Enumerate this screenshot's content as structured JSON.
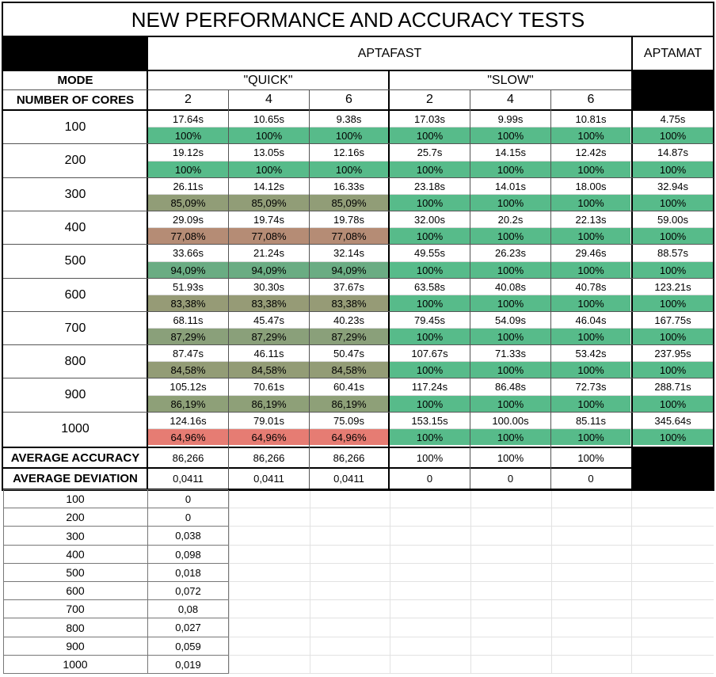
{
  "title": "NEW PERFORMANCE AND ACCURACY TESTS",
  "groups": {
    "aptafast": "APTAFAST",
    "aptamat": "APTAMAT"
  },
  "mode_label": "MODE",
  "cores_label": "NUMBER OF CORES",
  "modes": {
    "quick": "\"QUICK\"",
    "slow": "\"SLOW\""
  },
  "cores": [
    "2",
    "4",
    "6",
    "2",
    "4",
    "6"
  ],
  "rows": [
    {
      "n": "100",
      "times": [
        "17.64s",
        "10.65s",
        "9.38s",
        "17.03s",
        "9.99s",
        "10.81s",
        "4.75s"
      ],
      "acc": [
        "100%",
        "100%",
        "100%",
        "100%",
        "100%",
        "100%",
        "100%"
      ]
    },
    {
      "n": "200",
      "times": [
        "19.12s",
        "13.05s",
        "12.16s",
        "25.7s",
        "14.15s",
        "12.42s",
        "14.87s"
      ],
      "acc": [
        "100%",
        "100%",
        "100%",
        "100%",
        "100%",
        "100%",
        "100%"
      ]
    },
    {
      "n": "300",
      "times": [
        "26.11s",
        "14.12s",
        "16.33s",
        "23.18s",
        "14.01s",
        "18.00s",
        "32.94s"
      ],
      "acc": [
        "85,09%",
        "85,09%",
        "85,09%",
        "100%",
        "100%",
        "100%",
        "100%"
      ]
    },
    {
      "n": "400",
      "times": [
        "29.09s",
        "19.74s",
        "19.78s",
        "32.00s",
        "20.2s",
        "22.13s",
        "59.00s"
      ],
      "acc": [
        "77,08%",
        "77,08%",
        "77,08%",
        "100%",
        "100%",
        "100%",
        "100%"
      ]
    },
    {
      "n": "500",
      "times": [
        "33.66s",
        "21.24s",
        "32.14s",
        "49.55s",
        "26.23s",
        "29.46s",
        "88.57s"
      ],
      "acc": [
        "94,09%",
        "94,09%",
        "94,09%",
        "100%",
        "100%",
        "100%",
        "100%"
      ]
    },
    {
      "n": "600",
      "times": [
        "51.93s",
        "30.30s",
        "37.67s",
        "63.58s",
        "40.08s",
        "40.78s",
        "123.21s"
      ],
      "acc": [
        "83,38%",
        "83,38%",
        "83,38%",
        "100%",
        "100%",
        "100%",
        "100%"
      ]
    },
    {
      "n": "700",
      "times": [
        "68.11s",
        "45.47s",
        "40.23s",
        "79.45s",
        "54.09s",
        "46.04s",
        "167.75s"
      ],
      "acc": [
        "87,29%",
        "87,29%",
        "87,29%",
        "100%",
        "100%",
        "100%",
        "100%"
      ]
    },
    {
      "n": "800",
      "times": [
        "87.47s",
        "46.11s",
        "50.47s",
        "107.67s",
        "71.33s",
        "53.42s",
        "237.95s"
      ],
      "acc": [
        "84,58%",
        "84,58%",
        "84,58%",
        "100%",
        "100%",
        "100%",
        "100%"
      ]
    },
    {
      "n": "900",
      "times": [
        "105.12s",
        "70.61s",
        "60.41s",
        "117.24s",
        "86.48s",
        "72.73s",
        "288.71s"
      ],
      "acc": [
        "86,19%",
        "86,19%",
        "86,19%",
        "100%",
        "100%",
        "100%",
        "100%"
      ]
    },
    {
      "n": "1000",
      "times": [
        "124.16s",
        "79.01s",
        "75.09s",
        "153.15s",
        "100.00s",
        "85.11s",
        "345.64s"
      ],
      "acc": [
        "64,96%",
        "64,96%",
        "64,96%",
        "100%",
        "100%",
        "100%",
        "100%"
      ]
    }
  ],
  "acc_colors": {
    "100%": "#57bb8a",
    "94,09%": "#6aac83",
    "87,29%": "#8aa07a",
    "86,19%": "#8ea078",
    "85,09%": "#919d77",
    "84,58%": "#939c76",
    "83,38%": "#969b76",
    "77,08%": "#b58c75",
    "64,96%": "#e67c73"
  },
  "average_accuracy": {
    "label": "AVERAGE ACCURACY",
    "values": [
      "86,266",
      "86,266",
      "86,266",
      "100%",
      "100%",
      "100%"
    ]
  },
  "average_deviation": {
    "label": "AVERAGE DEVIATION",
    "values": [
      "0,0411",
      "0,0411",
      "0,0411",
      "0",
      "0",
      "0"
    ]
  },
  "deviation_table": [
    {
      "n": "100",
      "v": "0"
    },
    {
      "n": "200",
      "v": "0"
    },
    {
      "n": "300",
      "v": "0,038"
    },
    {
      "n": "400",
      "v": "0,098"
    },
    {
      "n": "500",
      "v": "0,018"
    },
    {
      "n": "600",
      "v": "0,072"
    },
    {
      "n": "700",
      "v": "0,08"
    },
    {
      "n": "800",
      "v": "0,027"
    },
    {
      "n": "900",
      "v": "0,059"
    },
    {
      "n": "1000",
      "v": "0,019"
    }
  ]
}
